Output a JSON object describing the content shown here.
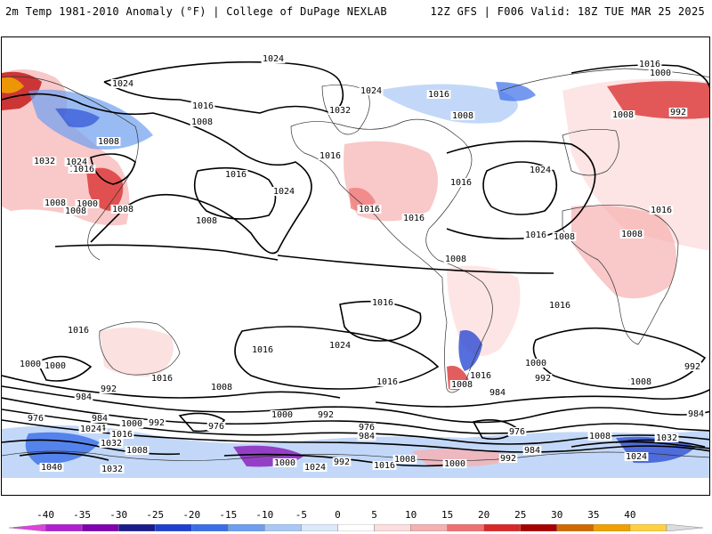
{
  "header": {
    "left_title": "2m Temp 1981-2010 Anomaly (°F) | College of DuPage NEXLAB",
    "right_title": "12Z GFS | F006 Valid: 18Z TUE MAR 25 2025"
  },
  "colorbar": {
    "ticks": [
      "-40",
      "-35",
      "-30",
      "-25",
      "-20",
      "-15",
      "-10",
      "-5",
      "0",
      "5",
      "10",
      "15",
      "20",
      "25",
      "30",
      "35",
      "40"
    ],
    "colors": [
      "#e040e0",
      "#b020d0",
      "#8000b0",
      "#1a1a8c",
      "#1e3fd0",
      "#3a6ee8",
      "#6d9ef0",
      "#a9c8f5",
      "#dce9fb",
      "#ffffff",
      "#fcdede",
      "#f7b0b0",
      "#ef7070",
      "#d82828",
      "#a80000",
      "#d06a00",
      "#f0a000",
      "#ffd040",
      "#dcdcdc"
    ]
  },
  "isobar_labels": [
    {
      "id": "l1",
      "text": "1024"
    },
    {
      "id": "l2",
      "text": "1016"
    },
    {
      "id": "l3",
      "text": "1000"
    },
    {
      "id": "l4",
      "text": "1024"
    },
    {
      "id": "l5",
      "text": "1024"
    },
    {
      "id": "l6",
      "text": "1016"
    },
    {
      "id": "l7",
      "text": "992"
    },
    {
      "id": "l8",
      "text": "1016"
    },
    {
      "id": "l9",
      "text": "1008"
    },
    {
      "id": "l10",
      "text": "1032"
    },
    {
      "id": "l11",
      "text": "1008"
    },
    {
      "id": "l12",
      "text": "1008"
    },
    {
      "id": "l13",
      "text": "1008"
    },
    {
      "id": "l14",
      "text": "1032"
    },
    {
      "id": "l15",
      "text": "1024"
    },
    {
      "id": "l16",
      "text": "1016"
    },
    {
      "id": "l17",
      "text": "1016"
    },
    {
      "id": "l18",
      "text": "1016"
    },
    {
      "id": "l19",
      "text": "1024"
    },
    {
      "id": "l20",
      "text": "1016"
    },
    {
      "id": "l21",
      "text": "1008"
    },
    {
      "id": "l22",
      "text": "1000"
    },
    {
      "id": "l23",
      "text": "1008"
    },
    {
      "id": "l24",
      "text": "1008"
    },
    {
      "id": "l25",
      "text": "1016"
    },
    {
      "id": "l26",
      "text": "1016"
    },
    {
      "id": "l27",
      "text": "1016"
    },
    {
      "id": "l28",
      "text": "1024"
    },
    {
      "id": "l29",
      "text": "1016"
    },
    {
      "id": "l30",
      "text": "1008"
    },
    {
      "id": "l31",
      "text": "1008"
    },
    {
      "id": "l32",
      "text": "1016"
    },
    {
      "id": "l33",
      "text": "1008"
    },
    {
      "id": "l34",
      "text": "1008"
    },
    {
      "id": "l35",
      "text": "1016"
    },
    {
      "id": "l36",
      "text": "1016"
    },
    {
      "id": "l37",
      "text": "1016"
    },
    {
      "id": "l38",
      "text": "1024"
    },
    {
      "id": "l39",
      "text": "1016"
    },
    {
      "id": "l40",
      "text": "1000"
    },
    {
      "id": "l41",
      "text": "1016"
    },
    {
      "id": "l42",
      "text": "992"
    },
    {
      "id": "l43",
      "text": "984"
    },
    {
      "id": "l44",
      "text": "1008"
    },
    {
      "id": "l45",
      "text": "1016"
    },
    {
      "id": "l46",
      "text": "1008"
    },
    {
      "id": "l47",
      "text": "1000"
    },
    {
      "id": "l48",
      "text": "984"
    },
    {
      "id": "l49",
      "text": "992"
    },
    {
      "id": "l50",
      "text": "1016"
    },
    {
      "id": "l51",
      "text": "1016"
    },
    {
      "id": "l52",
      "text": "1000"
    },
    {
      "id": "l53",
      "text": "992"
    },
    {
      "id": "l54",
      "text": "984"
    },
    {
      "id": "l55",
      "text": "976"
    },
    {
      "id": "l56",
      "text": "984"
    },
    {
      "id": "l57",
      "text": "1000"
    },
    {
      "id": "l58",
      "text": "992"
    },
    {
      "id": "l59",
      "text": "976"
    },
    {
      "id": "l60",
      "text": "1024"
    },
    {
      "id": "l61",
      "text": "1016"
    },
    {
      "id": "l62",
      "text": "1032"
    },
    {
      "id": "l63",
      "text": "1008"
    },
    {
      "id": "l64",
      "text": "1000"
    },
    {
      "id": "l65",
      "text": "1024"
    },
    {
      "id": "l66",
      "text": "992"
    },
    {
      "id": "l67",
      "text": "1016"
    },
    {
      "id": "l68",
      "text": "1008"
    },
    {
      "id": "l69",
      "text": "1000"
    },
    {
      "id": "l70",
      "text": "992"
    },
    {
      "id": "l71",
      "text": "984"
    },
    {
      "id": "l72",
      "text": "976"
    },
    {
      "id": "l73",
      "text": "976"
    },
    {
      "id": "l74",
      "text": "984"
    },
    {
      "id": "l75",
      "text": "1008"
    },
    {
      "id": "l76",
      "text": "1032"
    },
    {
      "id": "l77",
      "text": "1024"
    },
    {
      "id": "l78",
      "text": "1040"
    },
    {
      "id": "l79",
      "text": "1032"
    },
    {
      "id": "l80",
      "text": "1000"
    },
    {
      "id": "l81",
      "text": "1008"
    },
    {
      "id": "l82",
      "text": "992"
    },
    {
      "id": "l83",
      "text": "984"
    }
  ]
}
